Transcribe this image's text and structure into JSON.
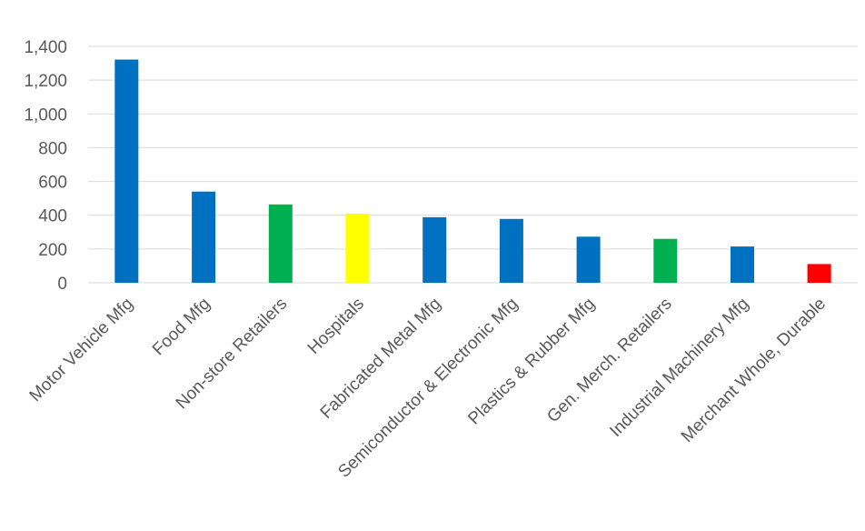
{
  "chart_data": {
    "type": "bar",
    "title": "",
    "xlabel": "",
    "ylabel": "",
    "ylim": [
      0,
      1400
    ],
    "yticks": [
      0,
      200,
      400,
      600,
      800,
      1000,
      1200,
      1400
    ],
    "ytick_labels": [
      "0",
      "200",
      "400",
      "600",
      "800",
      "1,000",
      "1,200",
      "1,400"
    ],
    "grid": true,
    "legend": "none",
    "categories": [
      "Motor Vehicle Mfg",
      "Food Mfg",
      "Non-store Retailers",
      "Hospitals",
      "Fabricated Metal Mfg",
      "Semiconductor & Electronic Mfg",
      "Plastics & Rubber Mfg",
      "Gen. Merch. Retailers",
      "Industrial Machinery Mfg",
      "Merchant Whole, Durable"
    ],
    "values": [
      1322,
      540,
      464,
      410,
      388,
      378,
      273,
      260,
      215,
      111
    ],
    "colors": [
      "#0070c0",
      "#0070c0",
      "#00b050",
      "#ffff00",
      "#0070c0",
      "#0070c0",
      "#0070c0",
      "#00b050",
      "#0070c0",
      "#ff0000"
    ],
    "gridline_color": "#d9d9d9",
    "label_color": "#595959"
  }
}
